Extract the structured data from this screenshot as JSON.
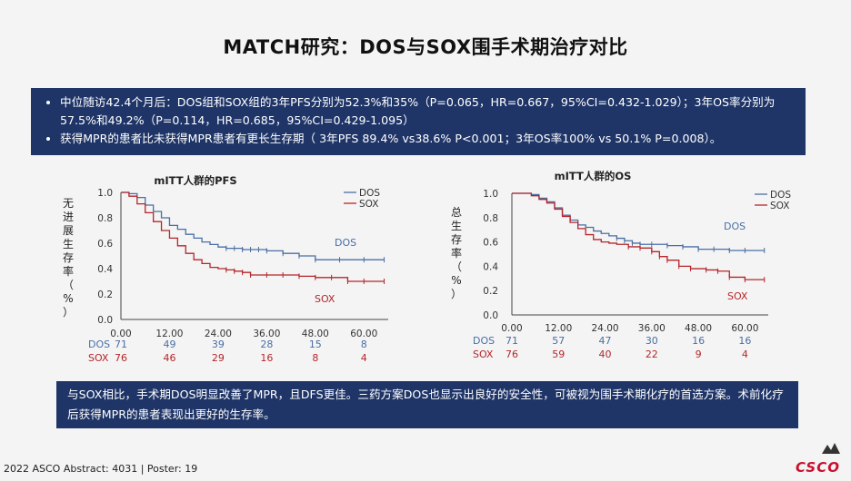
{
  "title": "MATCH研究：DOS与SOX围手术期治疗对比",
  "summary": [
    "中位随访42.4个月后：DOS组和SOX组的3年PFS分别为52.3%和35%（P=0.065，HR=0.667，95%CI=0.432-1.029）；3年OS率分别为57.5%和49.2%（P=0.114，HR=0.685，95%CI=0.429-1.095）",
    "获得MPR的患者比未获得MPR患者有更长生存期（ 3年PFS 89.4% vs38.6% P<0.001；3年OS率100% vs 50.1% P=0.008）。"
  ],
  "conclusion": "与SOX相比，手术期DOS明显改善了MPR，且DFS更佳。三药方案DOS也显示出良好的安全性，可被视为围手术期化疗的首选方案。术前化疗后获得MPR的患者表现出更好的生存率。",
  "footer": "2022 ASCO Abstract: 4031 | Poster: 19",
  "logo": "CSCO",
  "colors": {
    "dos": "#4a6fa5",
    "sox": "#b5262b",
    "box": "#1f3568"
  },
  "chart_data": [
    {
      "type": "line",
      "title": "mITT人群的PFS",
      "ylabel": "无进展生存率（%）",
      "ylim": [
        0,
        1.0
      ],
      "yticks": [
        "1.0",
        "0.8",
        "0.6",
        "0.4",
        "0.2",
        "0.0"
      ],
      "xlim": [
        0,
        66
      ],
      "xticks": [
        "0.00",
        "12.00",
        "24.00",
        "36.00",
        "48.00",
        "60.00"
      ],
      "legend": [
        "DOS",
        "SOX"
      ],
      "legend_position": "top-right",
      "series": [
        {
          "name": "DOS",
          "x": [
            0,
            2,
            4,
            6,
            8,
            10,
            12,
            14,
            16,
            18,
            20,
            22,
            24,
            26,
            28,
            30,
            32,
            34,
            36,
            40,
            44,
            48,
            54,
            60,
            65
          ],
          "y": [
            1.0,
            0.99,
            0.96,
            0.9,
            0.85,
            0.8,
            0.74,
            0.71,
            0.67,
            0.64,
            0.61,
            0.59,
            0.57,
            0.56,
            0.56,
            0.55,
            0.55,
            0.55,
            0.54,
            0.52,
            0.5,
            0.47,
            0.47,
            0.47,
            0.47
          ]
        },
        {
          "name": "SOX",
          "x": [
            0,
            2,
            4,
            6,
            8,
            10,
            12,
            14,
            16,
            18,
            20,
            22,
            24,
            26,
            28,
            30,
            32,
            36,
            40,
            44,
            48,
            52,
            56,
            60,
            65
          ],
          "y": [
            1.0,
            0.97,
            0.91,
            0.84,
            0.77,
            0.7,
            0.64,
            0.58,
            0.52,
            0.47,
            0.44,
            0.41,
            0.4,
            0.39,
            0.38,
            0.37,
            0.35,
            0.35,
            0.35,
            0.34,
            0.33,
            0.33,
            0.3,
            0.3,
            0.3
          ]
        }
      ],
      "annotations": [
        "DOS",
        "SOX"
      ],
      "risk_table": {
        "DOS": [
          "71",
          "49",
          "39",
          "28",
          "15",
          "8"
        ],
        "SOX": [
          "76",
          "46",
          "29",
          "16",
          "8",
          "4"
        ]
      }
    },
    {
      "type": "line",
      "title": "mITT人群的OS",
      "ylabel": "总生存率（%）",
      "ylim": [
        0,
        1.0
      ],
      "yticks": [
        "1.0",
        "0.8",
        "0.6",
        "0.4",
        "0.2",
        "0.0"
      ],
      "xlim": [
        0,
        66
      ],
      "xticks": [
        "0.00",
        "12.00",
        "24.00",
        "36.00",
        "48.00",
        "60.00"
      ],
      "legend": [
        "DOS",
        "SOX"
      ],
      "legend_position": "top-right",
      "series": [
        {
          "name": "DOS",
          "x": [
            0,
            3,
            5,
            7,
            9,
            11,
            13,
            15,
            17,
            19,
            21,
            23,
            25,
            27,
            29,
            31,
            33,
            36,
            40,
            44,
            48,
            52,
            56,
            60,
            65
          ],
          "y": [
            1.0,
            1.0,
            0.99,
            0.96,
            0.93,
            0.88,
            0.82,
            0.78,
            0.74,
            0.72,
            0.69,
            0.67,
            0.65,
            0.63,
            0.61,
            0.59,
            0.58,
            0.58,
            0.57,
            0.56,
            0.54,
            0.54,
            0.53,
            0.53,
            0.53
          ]
        },
        {
          "name": "SOX",
          "x": [
            0,
            3,
            5,
            7,
            9,
            11,
            13,
            15,
            17,
            19,
            21,
            23,
            25,
            27,
            30,
            33,
            36,
            38,
            40,
            43,
            46,
            50,
            53,
            56,
            60,
            65
          ],
          "y": [
            1.0,
            1.0,
            0.98,
            0.95,
            0.92,
            0.87,
            0.81,
            0.76,
            0.71,
            0.66,
            0.62,
            0.6,
            0.59,
            0.58,
            0.56,
            0.55,
            0.52,
            0.48,
            0.45,
            0.4,
            0.38,
            0.37,
            0.36,
            0.31,
            0.29,
            0.29
          ]
        }
      ],
      "annotations": [
        "DOS",
        "SOX"
      ],
      "risk_table": {
        "DOS": [
          "71",
          "57",
          "47",
          "30",
          "16",
          "16"
        ],
        "SOX": [
          "76",
          "59",
          "40",
          "22",
          "9",
          "4"
        ]
      }
    }
  ]
}
